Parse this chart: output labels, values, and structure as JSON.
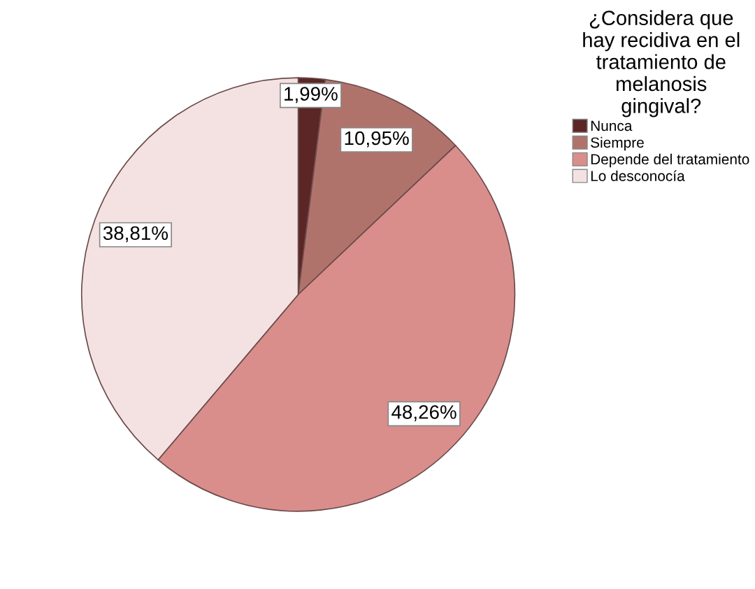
{
  "chart_data": {
    "type": "pie",
    "legend_title": "¿Considera que\nhay recidiva en el\ntratamiento de\nmelanosis\ngingival?",
    "categories": [
      "Nunca",
      "Siempre",
      "Depende del tratamiento",
      "Lo desconocía"
    ],
    "values": [
      1.99,
      10.95,
      48.26,
      38.81
    ],
    "value_labels": [
      "1,99%",
      "10,95%",
      "48,26%",
      "38,81%"
    ],
    "colors": [
      "#5c2626",
      "#b0736c",
      "#d98e8c",
      "#f3e2e1"
    ],
    "legend": "right"
  }
}
